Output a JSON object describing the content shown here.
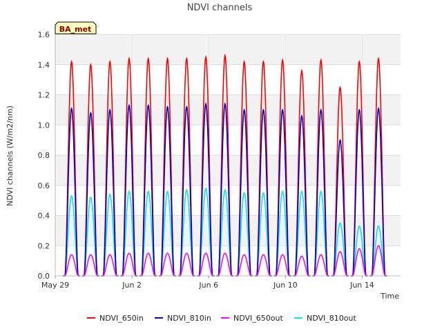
{
  "chart_data": {
    "type": "line",
    "title": "NDVI channels",
    "xlabel": "Time",
    "ylabel": "NDVI channels (W/m2/nm)",
    "badge": "BA_met",
    "ylim": [
      0.0,
      1.6
    ],
    "yticks": [
      0.0,
      0.2,
      0.4,
      0.6,
      0.8,
      1.0,
      1.2,
      1.4,
      1.6
    ],
    "ytick_labels": [
      "0.0",
      "0.2",
      "0.4",
      "0.6",
      "0.8",
      "1.0",
      "1.2",
      "1.4",
      "1.6"
    ],
    "xlim_days": [
      0,
      18
    ],
    "xticks_days": [
      0,
      4,
      8,
      12,
      16
    ],
    "xtick_labels": [
      "May 29",
      "Jun 2",
      "Jun 6",
      "Jun 10",
      "Jun 14"
    ],
    "day_peak_offsets": [
      0.85,
      1.85,
      2.85,
      3.85,
      4.85,
      5.85,
      6.85,
      7.85,
      8.85,
      9.85,
      10.85,
      11.85,
      12.85,
      13.85,
      14.85,
      15.85,
      16.85
    ],
    "grid": true,
    "series": [
      {
        "name": "NDVI_650in",
        "color": "#ff0000",
        "daily_peaks": [
          1.42,
          1.4,
          1.42,
          1.44,
          1.44,
          1.44,
          1.44,
          1.45,
          1.46,
          1.42,
          1.42,
          1.43,
          1.36,
          1.43,
          1.25,
          1.42,
          1.44
        ]
      },
      {
        "name": "NDVI_810in",
        "color": "#0000cc",
        "daily_peaks": [
          1.11,
          1.08,
          1.1,
          1.13,
          1.13,
          1.12,
          1.12,
          1.14,
          1.14,
          1.1,
          1.1,
          1.1,
          1.06,
          1.1,
          0.9,
          1.1,
          1.11
        ]
      },
      {
        "name": "NDVI_650out",
        "color": "#ff00ff",
        "daily_peaks": [
          0.14,
          0.14,
          0.14,
          0.15,
          0.15,
          0.15,
          0.15,
          0.15,
          0.15,
          0.14,
          0.14,
          0.14,
          0.13,
          0.14,
          0.16,
          0.18,
          0.2
        ]
      },
      {
        "name": "NDVI_810out",
        "color": "#00e5ee",
        "daily_peaks": [
          0.53,
          0.52,
          0.54,
          0.56,
          0.56,
          0.56,
          0.57,
          0.58,
          0.57,
          0.55,
          0.55,
          0.56,
          0.56,
          0.56,
          0.35,
          0.33,
          0.33
        ]
      }
    ]
  }
}
